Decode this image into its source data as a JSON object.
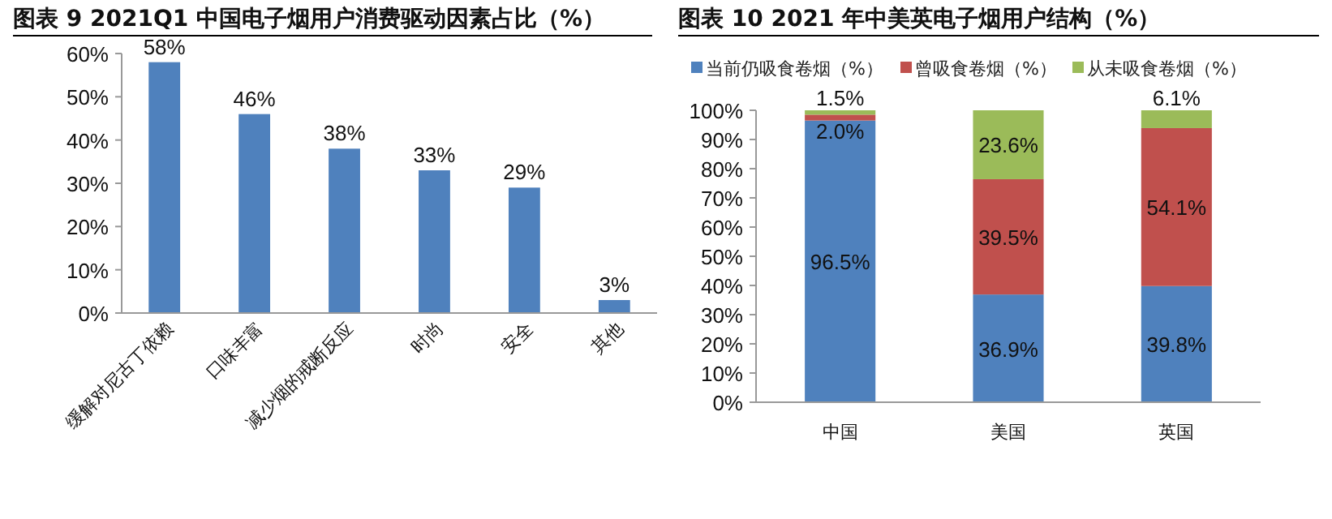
{
  "chart_data": [
    {
      "type": "bar",
      "title": "图表 9 2021Q1 中国电子烟用户消费驱动因素占比（%）",
      "categories": [
        "缓解对尼古丁依赖",
        "口味丰富",
        "减少烟的戒断反应",
        "时尚",
        "安全",
        "其他"
      ],
      "values": [
        58,
        46,
        38,
        33,
        29,
        3
      ],
      "value_labels": [
        "58%",
        "46%",
        "38%",
        "33%",
        "29%",
        "3%"
      ],
      "color": "#4f81bd",
      "ylim": [
        0,
        60
      ],
      "yticks": [
        {
          "value": 0,
          "label": "0%"
        },
        {
          "value": 10,
          "label": "10%"
        },
        {
          "value": 20,
          "label": "20%"
        },
        {
          "value": 30,
          "label": "30%"
        },
        {
          "value": 40,
          "label": "40%"
        },
        {
          "value": 50,
          "label": "50%"
        },
        {
          "value": 60,
          "label": "60%"
        }
      ],
      "grid": false
    },
    {
      "type": "bar",
      "title": "图表 10 2021 年中美英电子烟用户结构（%）",
      "stacked": true,
      "categories": [
        "中国",
        "美国",
        "英国"
      ],
      "series": [
        {
          "name": "当前仍吸食卷烟（%）",
          "color": "#4f81bd",
          "values": [
            96.5,
            36.9,
            39.8
          ],
          "value_labels": [
            "96.5%",
            "36.9%",
            "39.8%"
          ]
        },
        {
          "name": "曾吸食卷烟（%）",
          "color": "#c0504d",
          "values": [
            2.0,
            39.5,
            54.1
          ],
          "value_labels": [
            "2.0%",
            "39.5%",
            "54.1%"
          ]
        },
        {
          "name": "从未吸食卷烟（%）",
          "color": "#9bbb59",
          "values": [
            1.5,
            23.6,
            6.1
          ],
          "value_labels": [
            "1.5%",
            "23.6%",
            "6.1%"
          ]
        }
      ],
      "ylim": [
        0,
        100
      ],
      "yticks": [
        {
          "value": 0,
          "label": "0%"
        },
        {
          "value": 10,
          "label": "10%"
        },
        {
          "value": 20,
          "label": "20%"
        },
        {
          "value": 30,
          "label": "30%"
        },
        {
          "value": 40,
          "label": "40%"
        },
        {
          "value": 50,
          "label": "50%"
        },
        {
          "value": 60,
          "label": "60%"
        },
        {
          "value": 70,
          "label": "70%"
        },
        {
          "value": 80,
          "label": "80%"
        },
        {
          "value": 90,
          "label": "90%"
        },
        {
          "value": 100,
          "label": "100%"
        }
      ],
      "grid": false,
      "legend": "top"
    }
  ]
}
